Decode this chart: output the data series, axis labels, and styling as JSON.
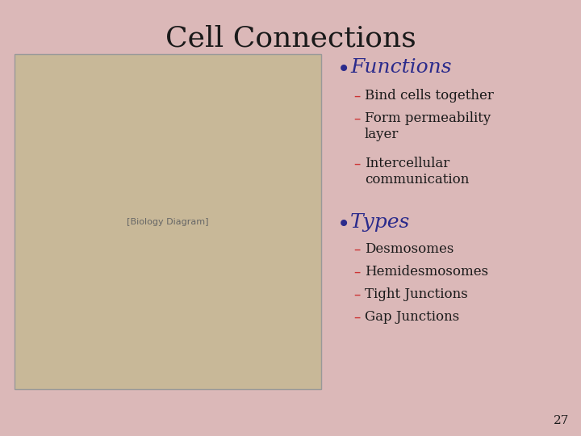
{
  "title": "Cell Connections",
  "title_fontsize": 26,
  "title_color": "#1a1a1a",
  "title_font": "serif",
  "bg_color": "#dbb8b8",
  "bullet_color": "#2b2b8c",
  "dash_color": "#cc3333",
  "body_color": "#1a1a1a",
  "bullet1": "Functions",
  "bullet1_items": [
    "Bind cells together",
    "Form permeability\nlayer",
    "Intercellular\ncommunication"
  ],
  "bullet2": "Types",
  "bullet2_items": [
    "Desmosomes",
    "Hemidesmosomes",
    "Tight Junctions",
    "Gap Junctions"
  ],
  "page_number": "27",
  "figsize": [
    7.2,
    5.4
  ],
  "dpi": 100
}
